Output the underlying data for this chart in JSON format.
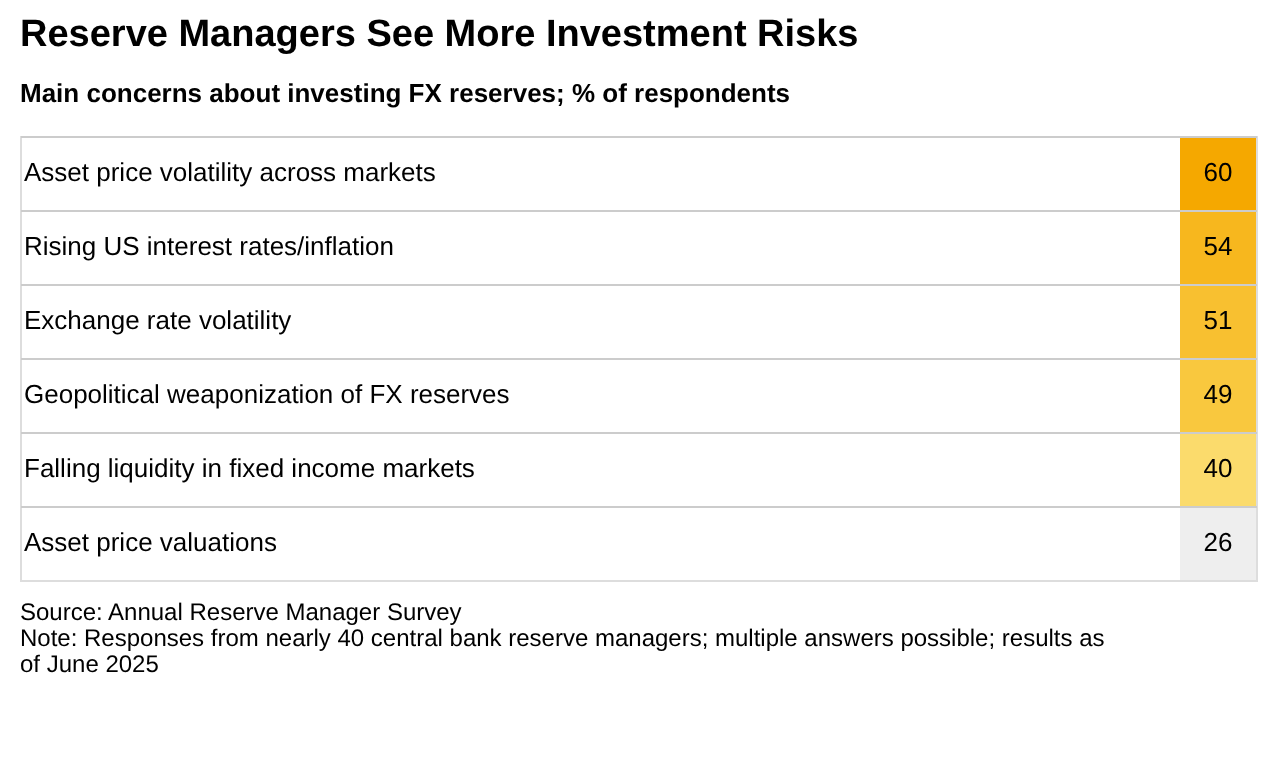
{
  "chart_data": {
    "type": "heatmap",
    "title": "Reserve Managers See More Investment Risks",
    "subtitle": "Main concerns about investing FX reserves; % of respondents",
    "categories": [
      null
    ],
    "y_categories": [
      "Asset price volatility across markets",
      "Rising US interest rates/inflation",
      "Exchange rate volatility",
      "Geopolitical weaponization of FX reserves",
      "Falling liquidity in fixed income markets",
      "Asset price valuations"
    ],
    "cells": [
      [
        60
      ],
      [
        54
      ],
      [
        51
      ],
      [
        49
      ],
      [
        40
      ],
      [
        26
      ]
    ],
    "colors": [
      "#f5a800",
      "#f7b71e",
      "#f8c030",
      "#f9c83e",
      "#fbdb6c",
      "#eeeeee"
    ],
    "data_labels": true,
    "grid": true,
    "annotations": [
      "Source: Annual Reserve Manager Survey",
      "Note: Responses from nearly 40 central bank reserve managers; multiple answers possible; results as of June 2025"
    ]
  }
}
